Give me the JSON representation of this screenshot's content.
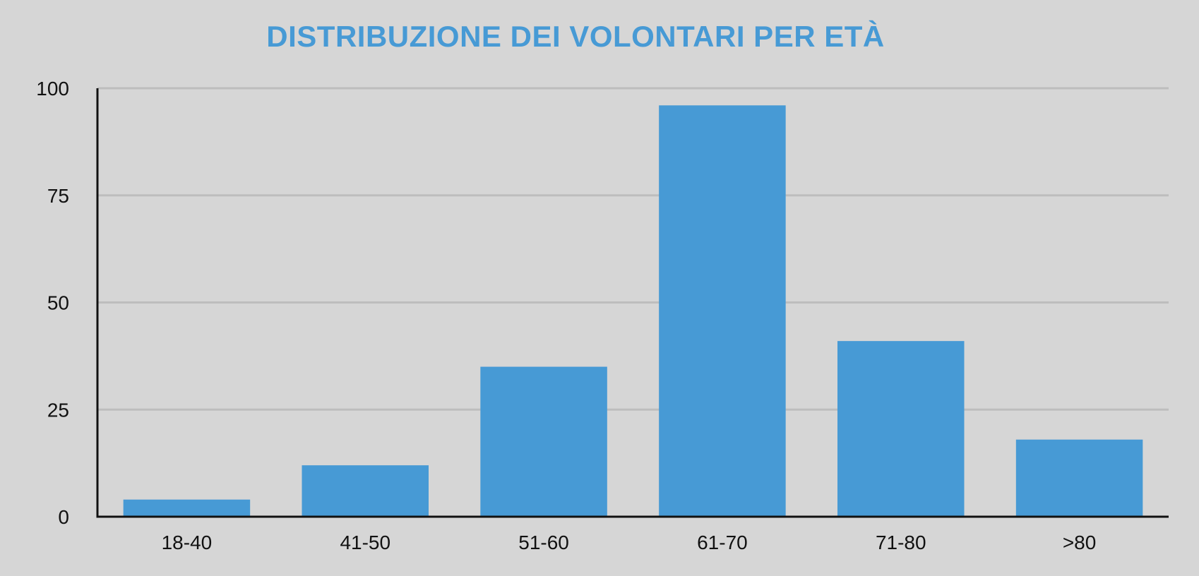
{
  "chart_data": {
    "type": "bar",
    "title": "DISTRIBUZIONE DEI VOLONTARI PER ETÀ",
    "categories": [
      "18-40",
      "41-50",
      "51-60",
      "61-70",
      "71-80",
      ">80"
    ],
    "values": [
      4,
      12,
      35,
      96,
      41,
      18
    ],
    "xlabel": "",
    "ylabel": "",
    "ylim": [
      0,
      100
    ],
    "yticks": [
      0,
      25,
      50,
      75,
      100
    ],
    "grid": true,
    "legend": "none",
    "colors": {
      "bar": "#479ad5",
      "title": "#479ad5",
      "grid": "#bdbdbd",
      "axis": "#111111",
      "background": "#d6d6d6"
    }
  }
}
